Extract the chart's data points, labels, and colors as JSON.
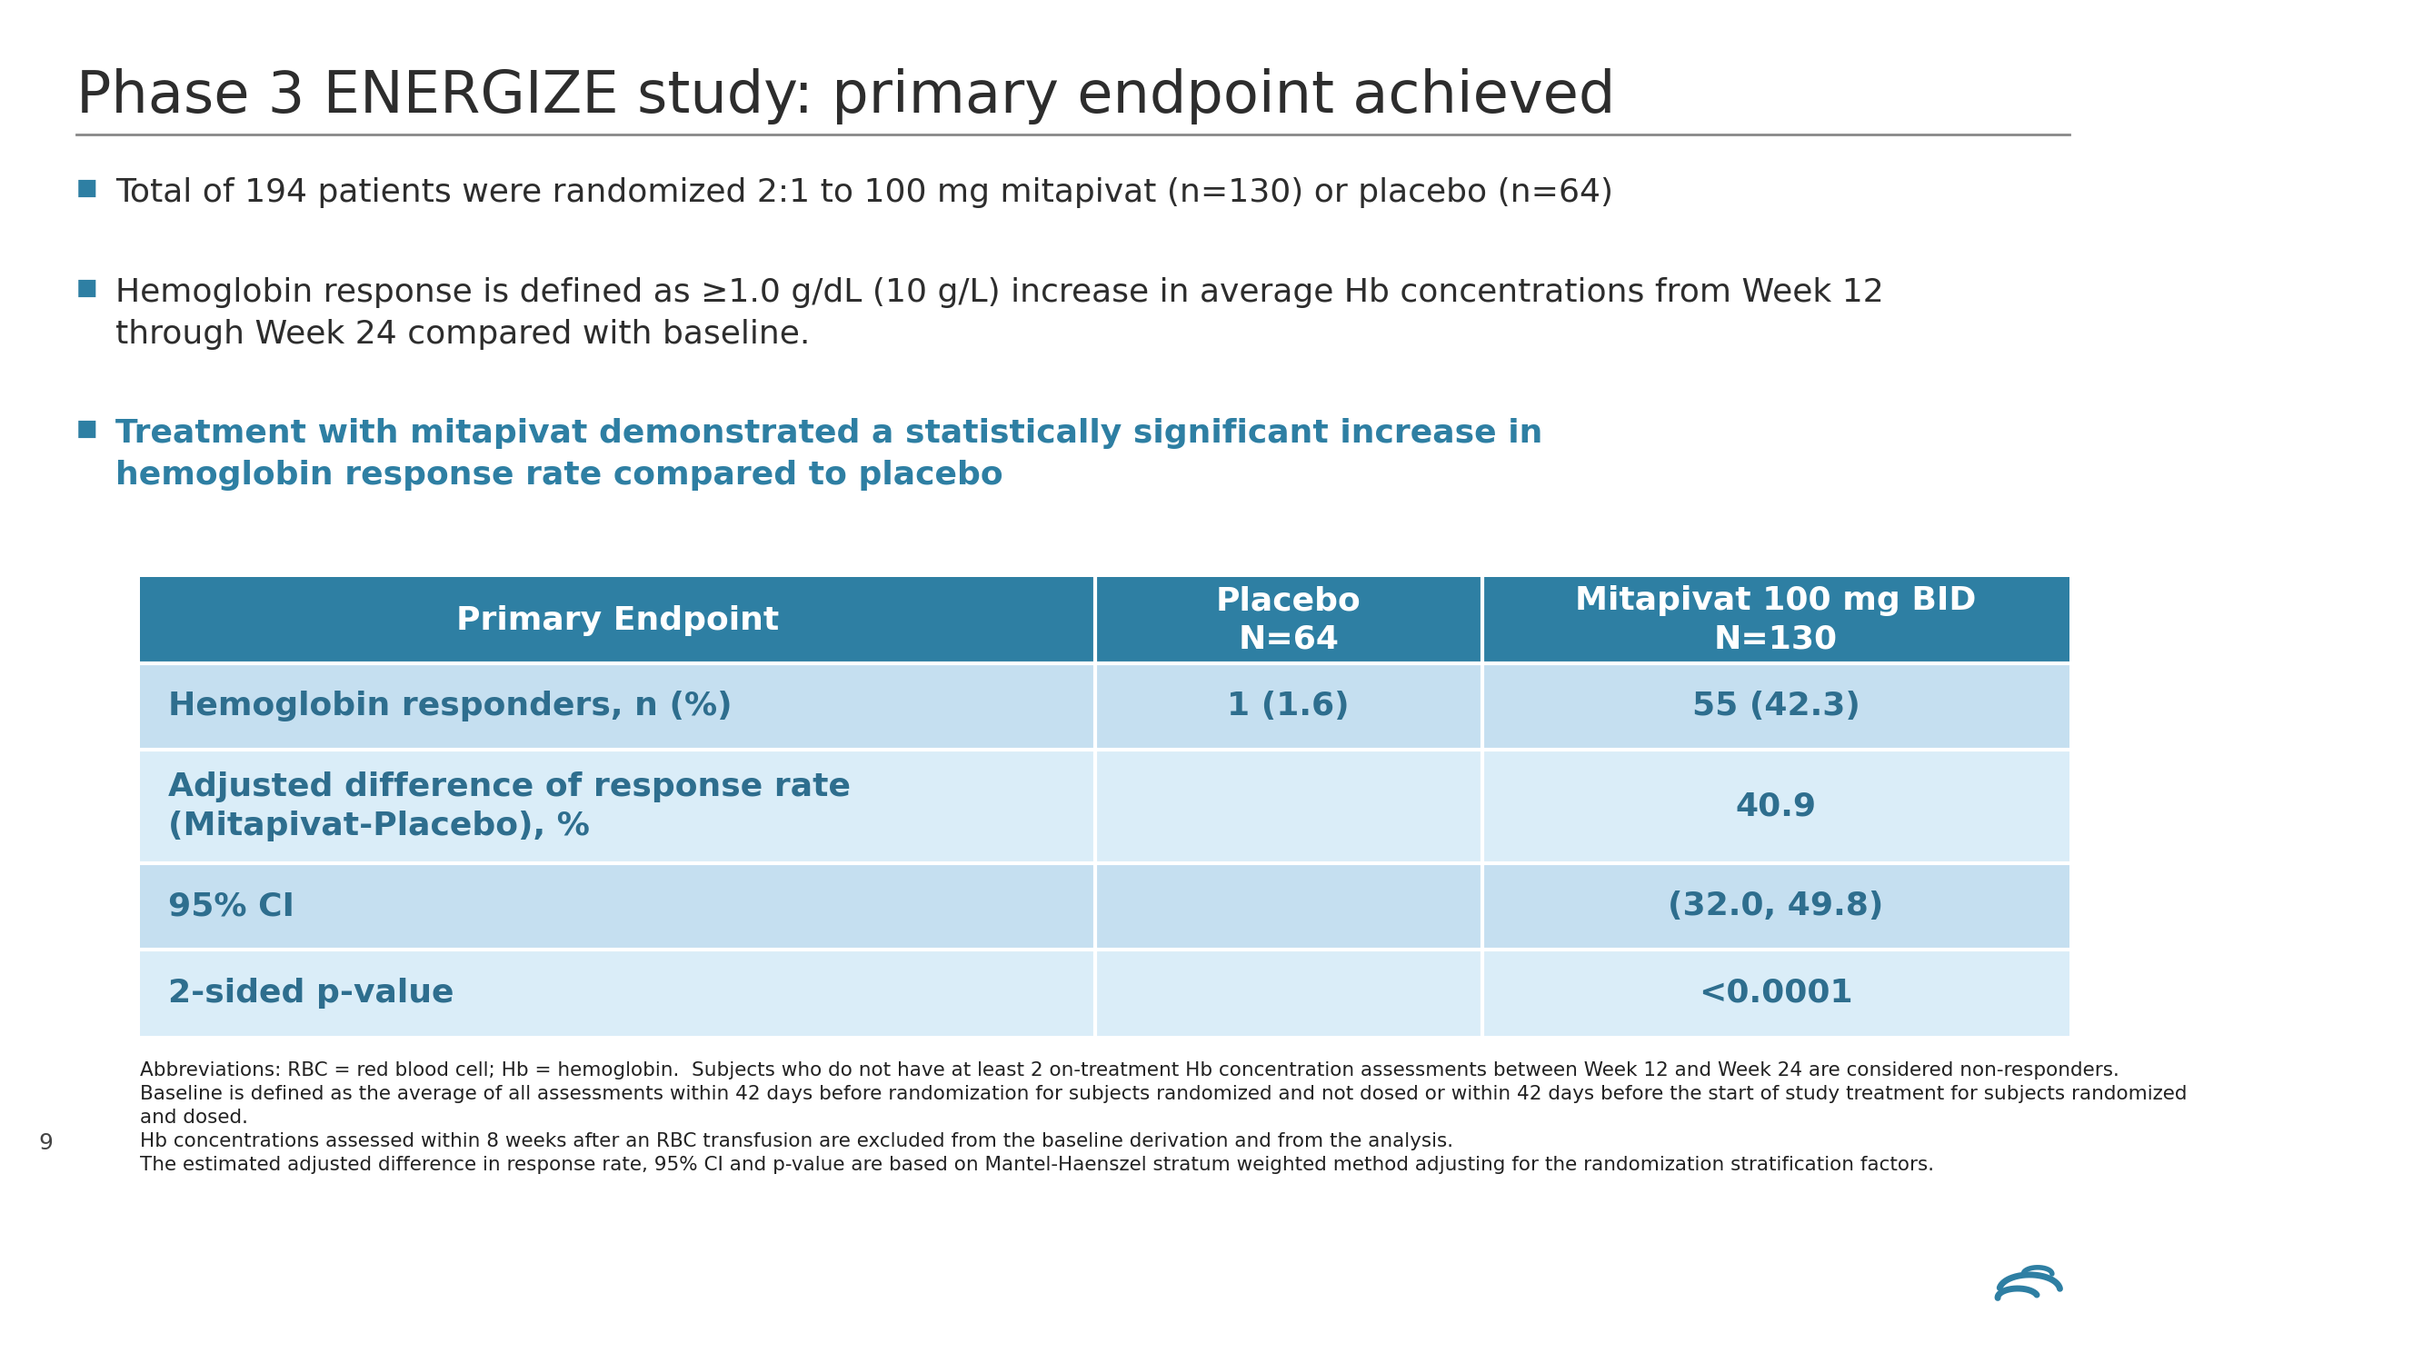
{
  "title": "Phase 3 ENERGIZE study: primary endpoint achieved",
  "bullet1": "Total of 194 patients were randomized 2:1 to 100 mg mitapivat (n=130) or placebo (n=64)",
  "bullet2": "Hemoglobin response is defined as ≥1.0 g/dL (10 g/L) increase in average Hb concentrations from Week 12\nthrough Week 24 compared with baseline.",
  "bullet3_bold": "Treatment with mitapivat demonstrated a statistically significant increase in\nhemoglobin response rate compared to placebo",
  "table_header": [
    "Primary Endpoint",
    "Placebo\nN=64",
    "Mitapivat 100 mg BID\nN=130"
  ],
  "table_rows": [
    [
      "Hemoglobin responders, n (%)",
      "1 (1.6)",
      "55 (42.3)"
    ],
    [
      "Adjusted difference of response rate\n(Mitapivat-Placebo), %",
      "",
      "40.9"
    ],
    [
      "95% CI",
      "",
      "(32.0, 49.8)"
    ],
    [
      "2-sided p-value",
      "",
      "<0.0001"
    ]
  ],
  "footnote1": "Abbreviations: RBC = red blood cell; Hb = hemoglobin.  Subjects who do not have at least 2 on-treatment Hb concentration assessments between Week 12 and Week 24 are considered non-responders.",
  "footnote2": "Baseline is defined as the average of all assessments within 42 days before randomization for subjects randomized and not dosed or within 42 days before the start of study treatment for subjects randomized",
  "footnote2b": "and dosed.",
  "footnote3": "Hb concentrations assessed within 8 weeks after an RBC transfusion are excluded from the baseline derivation and from the analysis.",
  "footnote4": "The estimated adjusted difference in response rate, 95% CI and p-value are based on Mantel-Haenszel stratum weighted method adjusting for the randomization stratification factors.",
  "page_number": "9",
  "header_bg": "#2e7fa3",
  "row1_bg": "#c5dff0",
  "row2_bg": "#daedf8",
  "row3_bg": "#c5dff0",
  "row4_bg": "#daedf8",
  "header_text_color": "#ffffff",
  "row_text_color": "#2e6e8e",
  "title_color": "#2d2d2d",
  "bullet_color": "#2d2d2d",
  "bullet3_color": "#2e7fa3",
  "bullet_marker_color": "#2e7fa3",
  "bg_color": "#ffffff",
  "divider_color": "#8abcd4"
}
